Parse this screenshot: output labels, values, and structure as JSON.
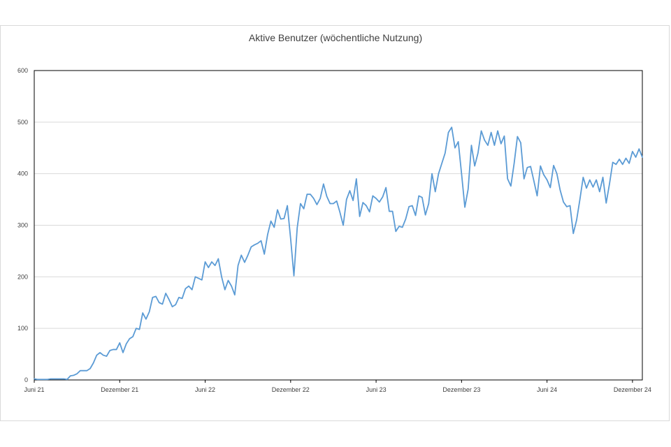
{
  "chart_data": {
    "type": "line",
    "title": "Aktive Benutzer (wöchentliche Nutzung)",
    "xlabel": "",
    "ylabel": "",
    "ylim": [
      0,
      600
    ],
    "yticks": [
      0,
      100,
      200,
      300,
      400,
      500,
      600
    ],
    "xticks": [
      {
        "label": "Juni 21",
        "week": 0
      },
      {
        "label": "Dezember 21",
        "week": 26
      },
      {
        "label": "Juni 22",
        "week": 52
      },
      {
        "label": "Dezember 22",
        "week": 78
      },
      {
        "label": "Juni 23",
        "week": 104
      },
      {
        "label": "Dezember 23",
        "week": 130
      },
      {
        "label": "Juni 24",
        "week": 156
      },
      {
        "label": "Dezember 24",
        "week": 182
      }
    ],
    "grid": true,
    "legend": "none",
    "series": [
      {
        "name": "",
        "color": "#5b9bd5",
        "values": [
          2,
          1,
          1,
          1,
          1,
          2,
          2,
          2,
          2,
          2,
          1,
          8,
          9,
          12,
          18,
          18,
          18,
          22,
          33,
          48,
          53,
          48,
          46,
          57,
          59,
          59,
          72,
          53,
          70,
          80,
          84,
          100,
          98,
          130,
          118,
          132,
          160,
          162,
          150,
          147,
          168,
          156,
          142,
          146,
          160,
          158,
          177,
          182,
          175,
          200,
          197,
          194,
          229,
          218,
          229,
          222,
          235,
          200,
          175,
          193,
          182,
          165,
          222,
          242,
          228,
          242,
          258,
          262,
          265,
          270,
          244,
          282,
          308,
          296,
          330,
          312,
          313,
          338,
          274,
          202,
          295,
          342,
          332,
          360,
          360,
          352,
          340,
          352,
          380,
          356,
          342,
          342,
          347,
          325,
          300,
          350,
          367,
          348,
          390,
          317,
          344,
          338,
          326,
          357,
          352,
          345,
          355,
          373,
          327,
          327,
          288,
          298,
          296,
          312,
          336,
          338,
          319,
          357,
          354,
          320,
          342,
          400,
          365,
          400,
          420,
          440,
          480,
          490,
          450,
          462,
          400,
          335,
          370,
          455,
          415,
          440,
          483,
          465,
          455,
          480,
          455,
          483,
          458,
          473,
          390,
          376,
          420,
          472,
          460,
          390,
          412,
          414,
          386,
          357,
          415,
          398,
          388,
          373,
          416,
          400,
          368,
          345,
          336,
          338,
          284,
          310,
          350,
          393,
          372,
          388,
          374,
          388,
          365,
          393,
          343,
          380,
          422,
          418,
          428,
          418,
          430,
          420,
          443,
          432,
          448,
          432
        ]
      }
    ]
  }
}
